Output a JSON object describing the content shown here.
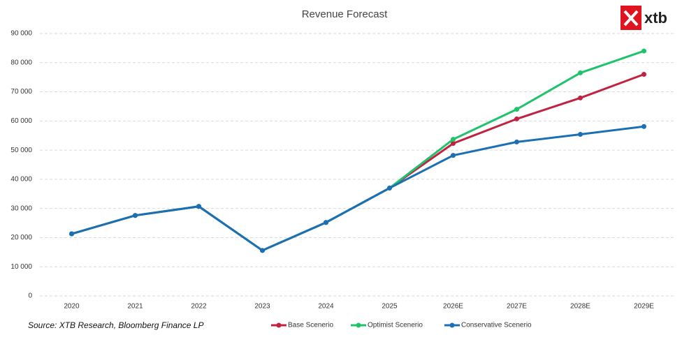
{
  "logo": "xtb",
  "chart_data": {
    "type": "line",
    "title": "Revenue Forecast",
    "source": "Source: XTB Research, Bloomberg Finance LP",
    "categories": [
      "2020",
      "2021",
      "2022",
      "2023",
      "2024",
      "2025",
      "2026E",
      "2027E",
      "2028E",
      "2029E"
    ],
    "series": [
      {
        "name": "Base Scenerio",
        "color": "#c0223f",
        "values": [
          21300,
          27600,
          30700,
          15600,
          25200,
          37000,
          52300,
          60700,
          67900,
          76000
        ]
      },
      {
        "name": "Optimist Scenerio",
        "color": "#1fc36b",
        "values": [
          21300,
          27600,
          30700,
          15600,
          25200,
          37000,
          53700,
          64000,
          76500,
          84000
        ]
      },
      {
        "name": "Conservative Scenerio",
        "color": "#1a6fb5",
        "values": [
          21300,
          27600,
          30700,
          15600,
          25200,
          37000,
          48200,
          52800,
          55400,
          58100
        ]
      }
    ],
    "ylim": [
      0,
      90000
    ],
    "yticks": [
      0,
      {
        "value": 10000,
        "label": "10 000"
      },
      {
        "value": 20000,
        "label": "20 000"
      },
      {
        "value": 30000,
        "label": "30 000"
      },
      {
        "value": 40000,
        "label": "40 000"
      },
      {
        "value": 50000,
        "label": "50 000"
      },
      {
        "value": 60000,
        "label": "60 000"
      },
      {
        "value": 70000,
        "label": "70 000"
      },
      {
        "value": 80000,
        "label": "80 000"
      },
      {
        "value": 90000,
        "label": "90 000"
      }
    ],
    "grid": true,
    "legend": "bottom"
  }
}
